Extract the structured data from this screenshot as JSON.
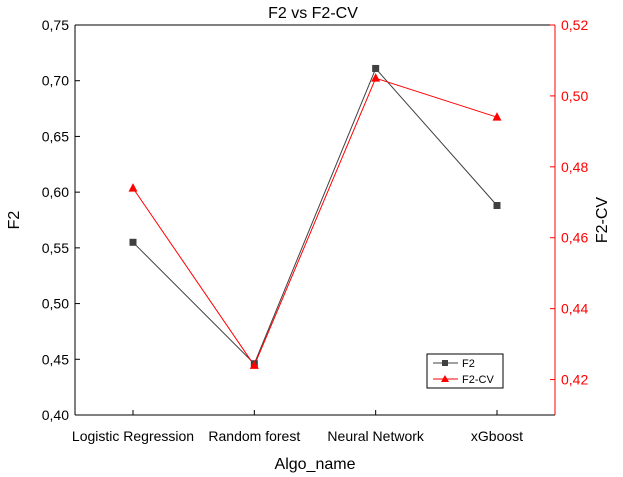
{
  "chart_data": {
    "type": "line",
    "title": "F2 vs F2-CV",
    "xlabel": "Algo_name",
    "ylabel": "F2",
    "y2label": "F2-CV",
    "categories": [
      "Logistic Regression",
      "Random forest",
      "Neural Network",
      "xGboost"
    ],
    "ylim": [
      0.4,
      0.75
    ],
    "y2lim": [
      0.41,
      0.52
    ],
    "yticks": [
      "0,40",
      "0,45",
      "0,50",
      "0,55",
      "0,60",
      "0,65",
      "0,70",
      "0,75"
    ],
    "y2ticks": [
      "0,42",
      "0,44",
      "0,46",
      "0,48",
      "0,50",
      "0,52"
    ],
    "legend_position": "bottom-right",
    "grid": false,
    "series": [
      {
        "name": "F2",
        "axis": "left",
        "marker": "square",
        "color": "#404040",
        "values": [
          0.555,
          0.446,
          0.711,
          0.588
        ]
      },
      {
        "name": "F2-CV",
        "axis": "right",
        "marker": "triangle",
        "color": "#ff0000",
        "values": [
          0.474,
          0.424,
          0.505,
          0.494
        ]
      }
    ]
  }
}
